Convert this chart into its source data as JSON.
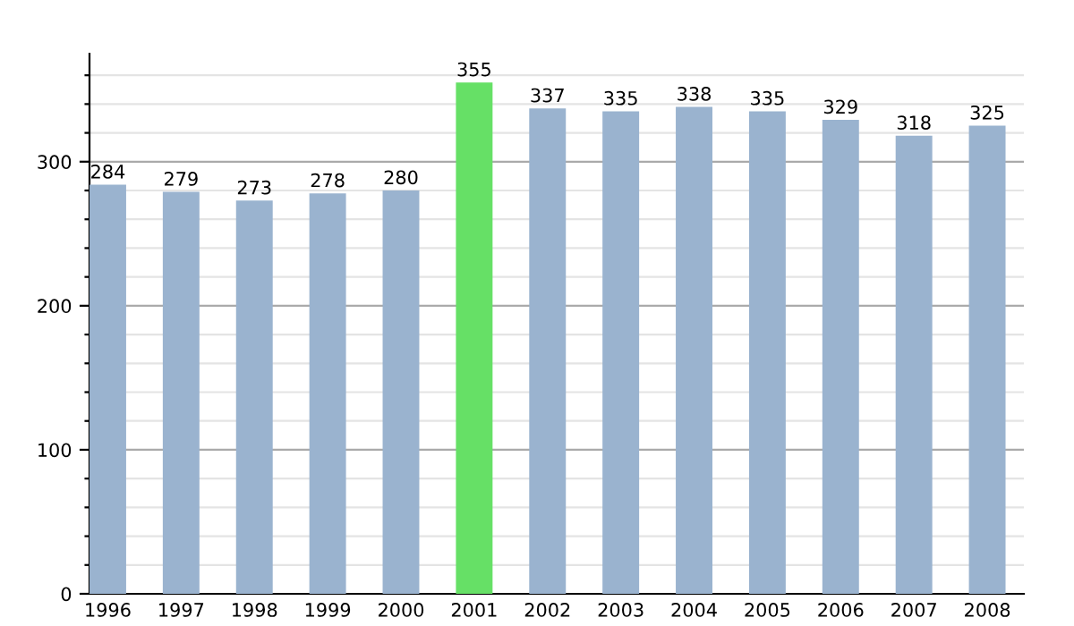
{
  "chart_data": {
    "type": "bar",
    "categories": [
      "1996",
      "1997",
      "1998",
      "1999",
      "2000",
      "2001",
      "2002",
      "2003",
      "2004",
      "2005",
      "2006",
      "2007",
      "2008"
    ],
    "values": [
      284,
      279,
      273,
      278,
      280,
      355,
      337,
      335,
      338,
      335,
      329,
      318,
      325
    ],
    "colors": [
      "#9ab3cf",
      "#9ab3cf",
      "#9ab3cf",
      "#9ab3cf",
      "#9ab3cf",
      "#66e066",
      "#9ab3cf",
      "#9ab3cf",
      "#9ab3cf",
      "#9ab3cf",
      "#9ab3cf",
      "#9ab3cf",
      "#9ab3cf"
    ],
    "ylim": [
      0,
      375
    ],
    "yticks": [
      0,
      {
        "value": 20,
        "label": null
      },
      {
        "value": 40,
        "label": null
      },
      {
        "value": 60,
        "label": null
      },
      {
        "value": 80,
        "label": null
      },
      100,
      {
        "value": 120,
        "label": null
      },
      {
        "value": 140,
        "label": null
      },
      {
        "value": 160,
        "label": null
      },
      {
        "value": 180,
        "label": null
      },
      200,
      {
        "value": 220,
        "label": null
      },
      {
        "value": 240,
        "label": null
      },
      {
        "value": 260,
        "label": null
      },
      {
        "value": 280,
        "label": null
      },
      300,
      {
        "value": 320,
        "label": null
      },
      {
        "value": 340,
        "label": null
      },
      {
        "value": 360,
        "label": null
      }
    ],
    "grid": "y",
    "data_labels": true
  }
}
